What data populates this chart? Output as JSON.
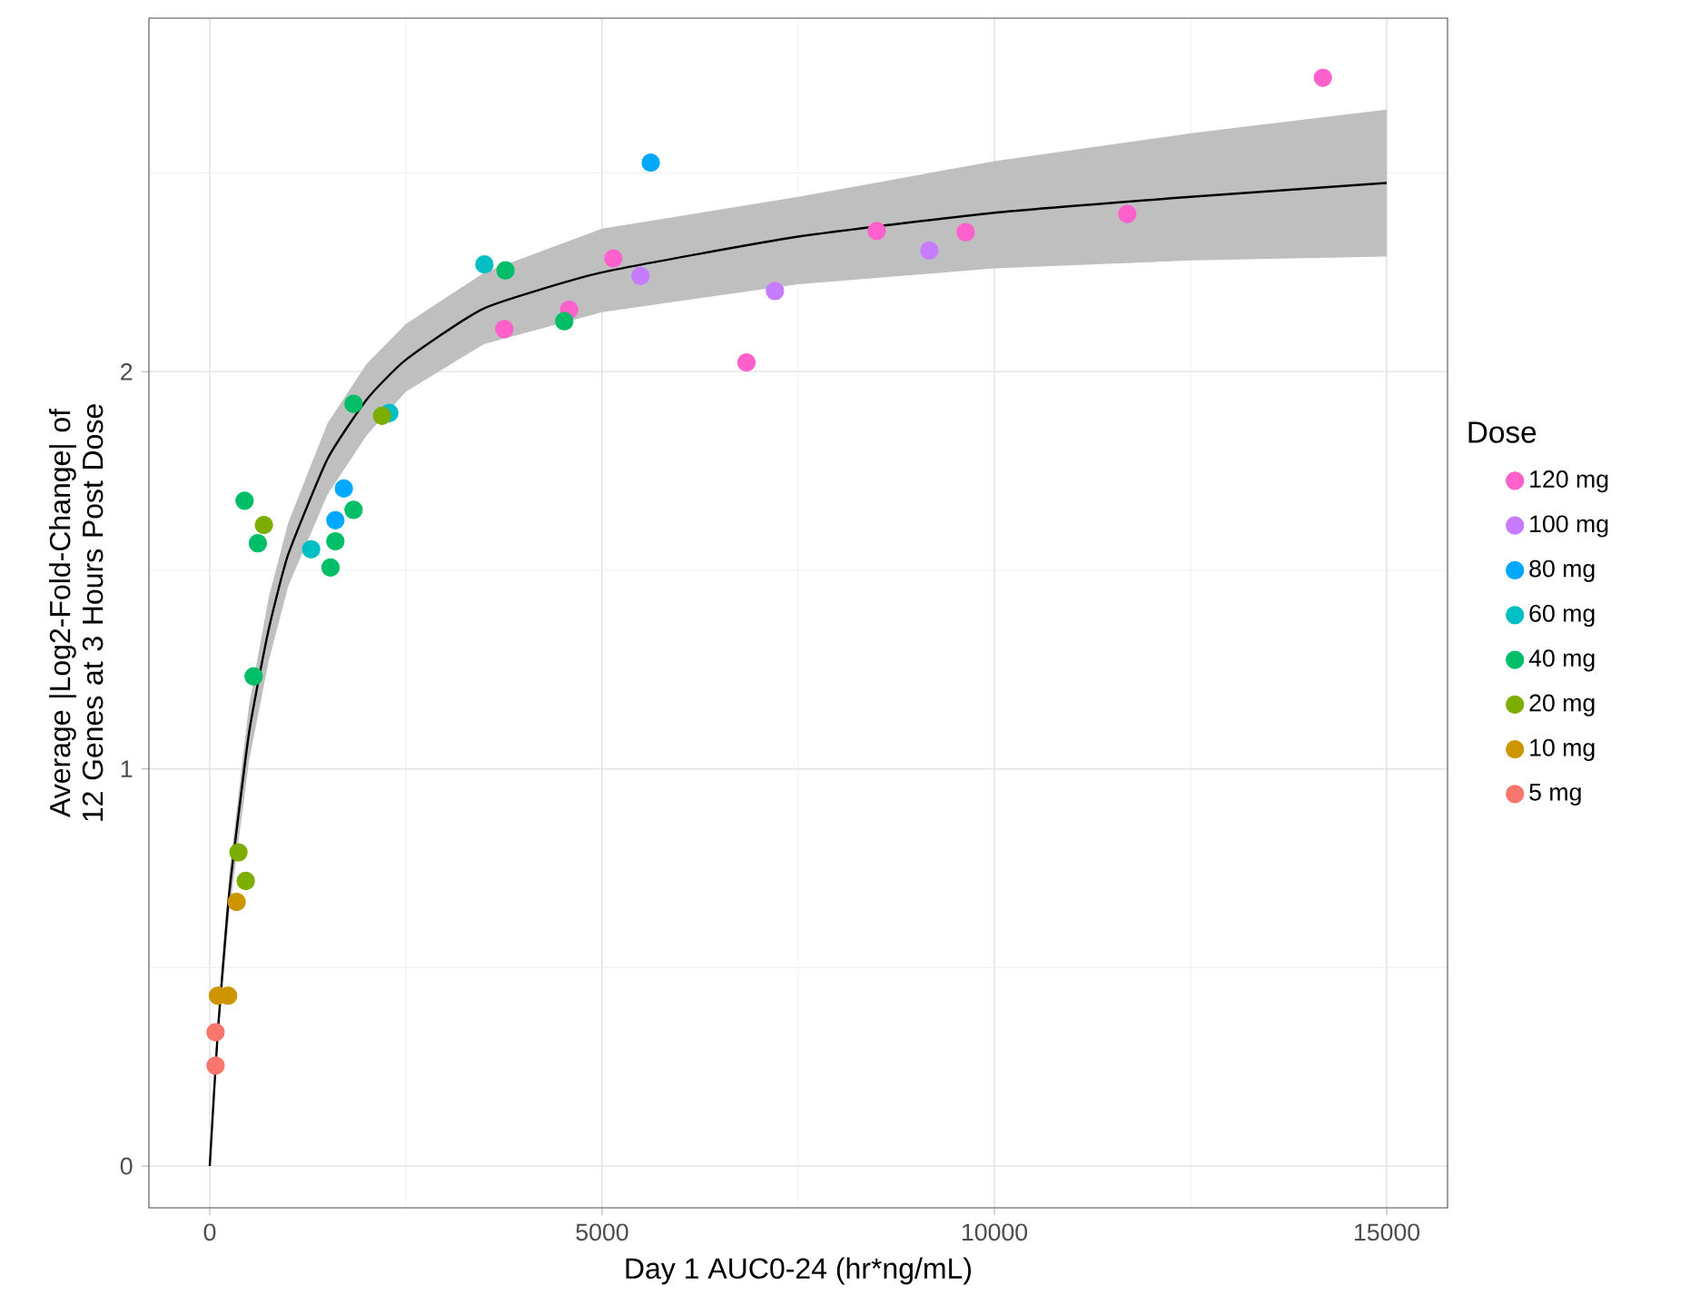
{
  "chart_data": {
    "type": "scatter",
    "xlabel": "Day 1 AUC0-24 (hr*ng/mL)",
    "ylabel": "Average |Log2-Fold-Change| of 12 Genes at 3 Hours Post Dose",
    "legend_title": "Dose",
    "legend": "right",
    "grid": true,
    "xlim": [
      -775,
      15775
    ],
    "ylim": [
      -0.105,
      2.89
    ],
    "xticks": [
      0,
      {
        "value": 2500,
        "label": null
      },
      5000,
      {
        "value": 7500,
        "label": null
      },
      10000,
      {
        "value": 12500,
        "label": null
      },
      15000
    ],
    "yticks": [
      0,
      {
        "value": 0.5,
        "label": null
      },
      1,
      {
        "value": 1.5,
        "label": null
      },
      2,
      {
        "value": 2.5,
        "label": null
      }
    ],
    "series": [
      {
        "name": "120 mg",
        "marker": "circle",
        "color": "#FF61CC",
        "x": [
          3754,
          4580,
          5143,
          6840,
          8500,
          9634,
          11694,
          14186
        ],
        "values": [
          2.107,
          2.156,
          2.285,
          2.023,
          2.354,
          2.351,
          2.397,
          2.74
        ]
      },
      {
        "name": "100 mg",
        "marker": "circle",
        "color": "#C77CFF",
        "x": [
          5490,
          7203,
          9171
        ],
        "values": [
          2.241,
          2.203,
          2.305
        ]
      },
      {
        "name": "80 mg",
        "marker": "circle",
        "color": "#00A9FF",
        "x": [
          1601,
          1709,
          5620
        ],
        "values": [
          1.626,
          1.706,
          2.526
        ]
      },
      {
        "name": "60 mg",
        "marker": "circle",
        "color": "#00BFC4",
        "x": [
          1292,
          2288,
          3500
        ],
        "values": [
          1.553,
          1.896,
          2.27
        ]
      },
      {
        "name": "40 mg",
        "marker": "circle",
        "color": "#00BE67",
        "x": [
          560,
          444,
          613,
          1539,
          1601,
          1833,
          1833,
          3769,
          4518
        ],
        "values": [
          1.233,
          1.675,
          1.568,
          1.507,
          1.573,
          1.652,
          1.919,
          2.255,
          2.127
        ]
      },
      {
        "name": "20 mg",
        "marker": "circle",
        "color": "#7CAE00",
        "x": [
          366,
          459,
          690,
          2195
        ],
        "values": [
          0.79,
          0.718,
          1.614,
          1.889
        ]
      },
      {
        "name": "10 mg",
        "marker": "circle",
        "color": "#CD9600",
        "x": [
          104,
          234,
          343
        ],
        "values": [
          0.429,
          0.429,
          0.665
        ]
      },
      {
        "name": "5 mg",
        "marker": "circle",
        "color": "#F8766D",
        "x": [
          74,
          74
        ],
        "values": [
          0.337,
          0.253
        ]
      },
      {
        "type": "line",
        "marker": "none",
        "color": "#000000",
        "x": [
          0,
          100,
          250,
          500,
          750,
          1000,
          1500,
          2000,
          2500,
          3500,
          5000,
          7500,
          10000,
          12500,
          15000
        ],
        "values": [
          0,
          0.33,
          0.69,
          1.09,
          1.35,
          1.54,
          1.78,
          1.93,
          2.03,
          2.16,
          2.25,
          2.34,
          2.4,
          2.44,
          2.475
        ],
        "upper": [
          0,
          0.35,
          0.74,
          1.16,
          1.43,
          1.62,
          1.87,
          2.02,
          2.12,
          2.25,
          2.36,
          2.44,
          2.53,
          2.6,
          2.66
        ],
        "lower": [
          0,
          0.31,
          0.64,
          1.02,
          1.27,
          1.46,
          1.69,
          1.84,
          1.95,
          2.07,
          2.15,
          2.22,
          2.26,
          2.28,
          2.29
        ]
      }
    ]
  }
}
